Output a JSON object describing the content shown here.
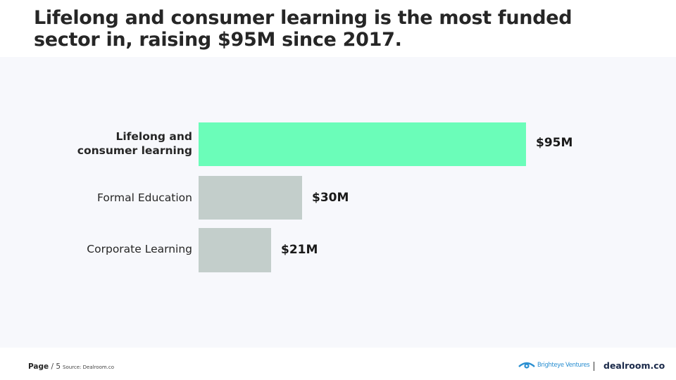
{
  "title": {
    "line1": "Lifelong and consumer learning is the most funded",
    "line2": "sector in, raising $95M since 2017."
  },
  "chart_data": {
    "type": "bar",
    "orientation": "horizontal",
    "title": "Lifelong and consumer learning is the most funded sector in, raising $95M since 2017.",
    "xlabel": "",
    "ylabel": "",
    "categories": [
      "Lifelong and consumer learning",
      "Formal Education",
      "Corporate Learning"
    ],
    "values": [
      95,
      30,
      21
    ],
    "value_labels": [
      "$95M",
      "$30M",
      "$21M"
    ],
    "unit": "$M",
    "grid": false,
    "legend": null,
    "highlight_index": 0,
    "colors": {
      "highlight": "#6bfdb9",
      "default": "#c3cecb"
    }
  },
  "chart": {
    "rows": [
      {
        "label_line1": "Lifelong and",
        "label_line2": "consumer learning",
        "value_label": "$95M"
      },
      {
        "label": "Formal Education",
        "value_label": "$30M"
      },
      {
        "label": "Corporate Learning",
        "value_label": "$21M"
      }
    ]
  },
  "footer": {
    "page_label": "Page",
    "page_number": "/ 5",
    "source": "Source: Dealroom.co",
    "logo_brighteye": "Brighteye Ventures",
    "logo_dealroom": "dealroom.co"
  }
}
